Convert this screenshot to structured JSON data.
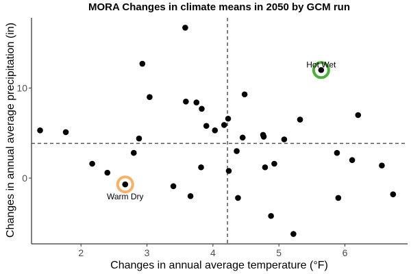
{
  "chart_data": {
    "type": "scatter",
    "title": "MORA Changes in climate means in 2050 by GCM run",
    "xlabel": "Changes in annual average temperature (°F)",
    "ylabel": "Changes in annual average precipitation (in)",
    "xlim": [
      1.25,
      6.95
    ],
    "ylim": [
      -7.3,
      17.8
    ],
    "xticks": [
      2,
      3,
      4,
      5,
      6
    ],
    "yticks": [
      0,
      10
    ],
    "xtick_labels": [
      "2",
      "3",
      "4",
      "5",
      "6"
    ],
    "ytick_labels": [
      "0",
      "10"
    ],
    "grid": false,
    "reference_lines": {
      "x": 4.22,
      "y": 3.85,
      "style": "dashed",
      "color": "#555555"
    },
    "point_color": "#000000",
    "points": [
      {
        "x": 1.38,
        "y": 5.3
      },
      {
        "x": 1.77,
        "y": 5.1
      },
      {
        "x": 2.17,
        "y": 1.6
      },
      {
        "x": 2.4,
        "y": 0.6
      },
      {
        "x": 2.67,
        "y": -0.7
      },
      {
        "x": 2.8,
        "y": 2.8
      },
      {
        "x": 2.88,
        "y": 4.4
      },
      {
        "x": 2.93,
        "y": 12.7
      },
      {
        "x": 3.04,
        "y": 9.0
      },
      {
        "x": 3.4,
        "y": -0.9
      },
      {
        "x": 3.58,
        "y": 16.7
      },
      {
        "x": 3.59,
        "y": 8.5
      },
      {
        "x": 3.66,
        "y": -2.0
      },
      {
        "x": 3.75,
        "y": 8.4
      },
      {
        "x": 3.82,
        "y": 1.2
      },
      {
        "x": 3.83,
        "y": 7.7
      },
      {
        "x": 3.9,
        "y": 5.8
      },
      {
        "x": 4.03,
        "y": 5.3
      },
      {
        "x": 4.17,
        "y": 5.9
      },
      {
        "x": 4.23,
        "y": 6.6
      },
      {
        "x": 4.24,
        "y": 0.8
      },
      {
        "x": 4.36,
        "y": 3.0
      },
      {
        "x": 4.38,
        "y": -2.2
      },
      {
        "x": 4.45,
        "y": 4.5
      },
      {
        "x": 4.48,
        "y": 9.3
      },
      {
        "x": 4.76,
        "y": 4.8
      },
      {
        "x": 4.77,
        "y": 4.6
      },
      {
        "x": 4.79,
        "y": 1.2
      },
      {
        "x": 4.88,
        "y": -4.2
      },
      {
        "x": 4.93,
        "y": 1.6
      },
      {
        "x": 5.08,
        "y": 4.3
      },
      {
        "x": 5.22,
        "y": -6.2
      },
      {
        "x": 5.32,
        "y": 6.5
      },
      {
        "x": 5.64,
        "y": 12.0
      },
      {
        "x": 5.88,
        "y": 2.8
      },
      {
        "x": 5.9,
        "y": -2.2
      },
      {
        "x": 6.11,
        "y": 2.0
      },
      {
        "x": 6.2,
        "y": 7.0
      },
      {
        "x": 6.56,
        "y": 1.4
      },
      {
        "x": 6.73,
        "y": -1.8
      }
    ],
    "highlights": [
      {
        "label": "Hot Wet",
        "x": 5.64,
        "y": 12.0,
        "color": "#4caf3a",
        "label_pos": "above"
      },
      {
        "label": "Warm Dry",
        "x": 2.67,
        "y": -0.7,
        "color": "#f7b267",
        "label_pos": "below"
      }
    ]
  }
}
